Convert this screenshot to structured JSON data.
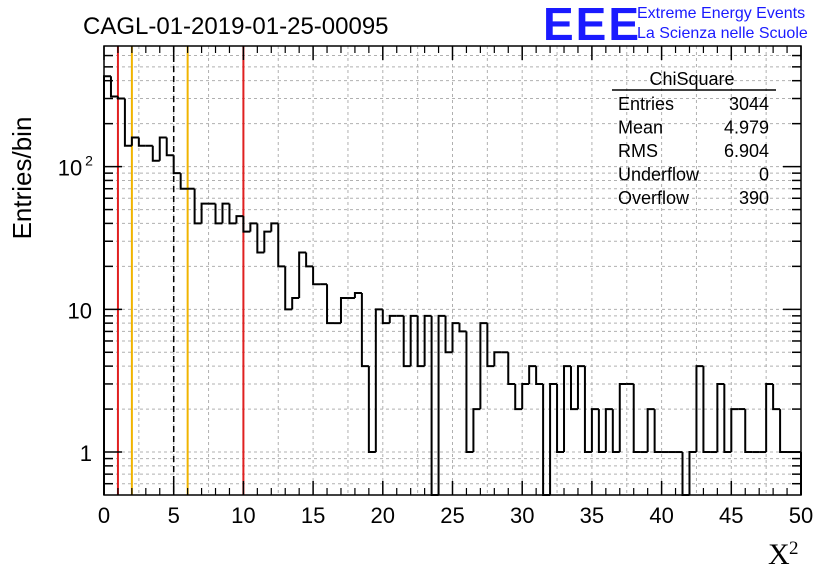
{
  "header": {
    "title": "CAGL-01-2019-01-25-00095",
    "logo_text": "EEE",
    "logo_line1": "Extreme Energy Events",
    "logo_line2": "La Scienza nelle Scuole"
  },
  "stats": {
    "name": "ChiSquare",
    "rows": [
      {
        "label": "Entries",
        "value": "3044"
      },
      {
        "label": "Mean",
        "value": "4.979"
      },
      {
        "label": "RMS",
        "value": "6.904"
      },
      {
        "label": "Underflow",
        "value": "0"
      },
      {
        "label": "Overflow",
        "value": "390"
      }
    ]
  },
  "colors": {
    "histogram": "#000000",
    "red_lines": "#e02020",
    "yellow_lines": "#f0b400",
    "logo": "#1a1aff",
    "grid": "#b0b0b0"
  },
  "chart_data": {
    "type": "bar",
    "histogram_style": "step",
    "xlabel": "X",
    "xlabel_superscript": "2",
    "ylabel": "Entries/bin",
    "xlim": [
      0,
      50
    ],
    "ylim": [
      0.5,
      700
    ],
    "yscale": "log",
    "grid": true,
    "bin_width": 0.5,
    "x_ticks": [
      "0",
      "5",
      "10",
      "15",
      "20",
      "25",
      "30",
      "35",
      "40",
      "45",
      "50"
    ],
    "y_ticks": [
      {
        "value": 1,
        "label": "1"
      },
      {
        "value": 10,
        "label": "10"
      },
      {
        "value": 100,
        "label": "10",
        "sup": "2"
      }
    ],
    "values": [
      430,
      310,
      300,
      140,
      160,
      140,
      140,
      110,
      160,
      120,
      90,
      70,
      70,
      40,
      55,
      55,
      40,
      55,
      40,
      45,
      35,
      40,
      25,
      35,
      40,
      20,
      10,
      12,
      25,
      20,
      15,
      15,
      8,
      8,
      12,
      12,
      13,
      4,
      1,
      10,
      8,
      9,
      9,
      4,
      9,
      4,
      9,
      0.5,
      9,
      5,
      8,
      7,
      1,
      2,
      8,
      4,
      5,
      5,
      3,
      2,
      3,
      4,
      3,
      0.5,
      3,
      1,
      4,
      2,
      4,
      1,
      2,
      1,
      2,
      1,
      3,
      3,
      1,
      1,
      2,
      1,
      1,
      1,
      1,
      0.5,
      1,
      4,
      1,
      1,
      3,
      1,
      2,
      2,
      1,
      1,
      1,
      3,
      2,
      1,
      1,
      1
    ],
    "vertical_lines": [
      {
        "x": 1,
        "color": "red",
        "style": "solid"
      },
      {
        "x": 2,
        "color": "yellow",
        "style": "solid"
      },
      {
        "x": 5,
        "color": "black",
        "style": "dashed"
      },
      {
        "x": 6,
        "color": "yellow",
        "style": "solid"
      },
      {
        "x": 10,
        "color": "red",
        "style": "solid"
      }
    ]
  }
}
